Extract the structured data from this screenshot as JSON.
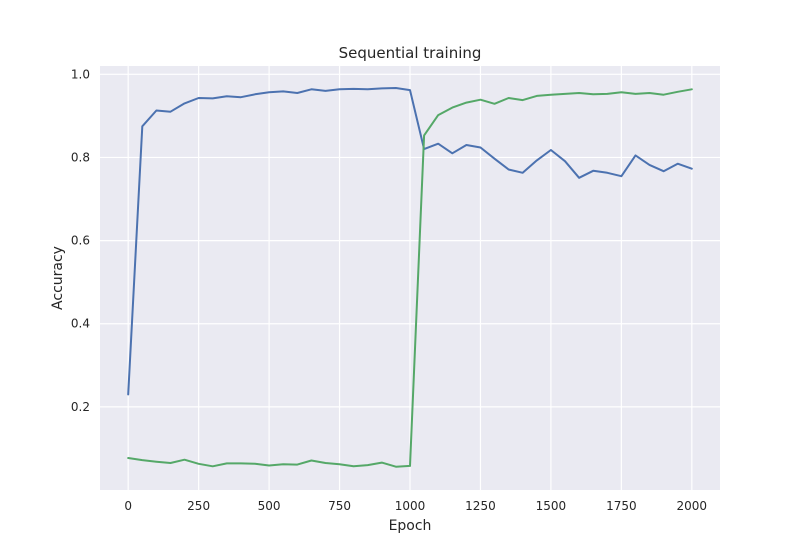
{
  "chart_data": {
    "type": "line",
    "title": "Sequential training",
    "xlabel": "Epoch",
    "ylabel": "Accuracy",
    "xlim": [
      -100,
      2100
    ],
    "ylim": [
      0.0,
      1.02
    ],
    "xticks": [
      0,
      250,
      500,
      750,
      1000,
      1250,
      1500,
      1750,
      2000
    ],
    "yticks": [
      0.2,
      0.4,
      0.6,
      0.8,
      1.0
    ],
    "ytick_labels": [
      "0.2",
      "0.4",
      "0.6",
      "0.8",
      "1.0"
    ],
    "grid": true,
    "background": "#eaeaf2",
    "x": [
      0,
      50,
      100,
      150,
      200,
      250,
      300,
      350,
      400,
      450,
      500,
      550,
      600,
      650,
      700,
      750,
      800,
      850,
      900,
      950,
      1000,
      1050,
      1100,
      1150,
      1200,
      1250,
      1300,
      1350,
      1400,
      1450,
      1500,
      1550,
      1600,
      1650,
      1700,
      1750,
      1800,
      1850,
      1900,
      1950,
      2000
    ],
    "series": [
      {
        "color": "#4c72b0",
        "values": [
          0.23,
          0.875,
          0.913,
          0.91,
          0.93,
          0.943,
          0.942,
          0.947,
          0.945,
          0.952,
          0.957,
          0.959,
          0.955,
          0.964,
          0.96,
          0.964,
          0.965,
          0.964,
          0.966,
          0.967,
          0.962,
          0.82,
          0.833,
          0.81,
          0.83,
          0.824,
          0.797,
          0.771,
          0.763,
          0.793,
          0.818,
          0.791,
          0.751,
          0.768,
          0.763,
          0.755,
          0.805,
          0.782,
          0.767,
          0.785,
          0.773
        ]
      },
      {
        "color": "#55a868",
        "values": [
          0.077,
          0.072,
          0.068,
          0.065,
          0.073,
          0.063,
          0.057,
          0.064,
          0.064,
          0.063,
          0.059,
          0.062,
          0.061,
          0.071,
          0.065,
          0.062,
          0.057,
          0.06,
          0.066,
          0.056,
          0.058,
          0.853,
          0.902,
          0.92,
          0.932,
          0.939,
          0.929,
          0.943,
          0.938,
          0.948,
          0.951,
          0.953,
          0.955,
          0.952,
          0.953,
          0.957,
          0.953,
          0.955,
          0.951,
          0.958,
          0.964
        ]
      }
    ]
  }
}
